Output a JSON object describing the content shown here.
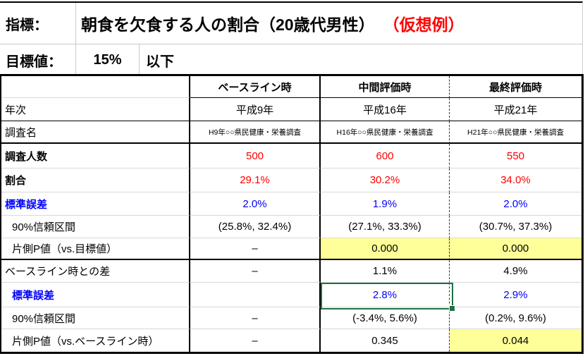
{
  "colors": {
    "value_red": "#FF0000",
    "se_blue": "#0000FF",
    "highlight_yellow": "#FFFF99",
    "selection_green": "#1E7145"
  },
  "header": {
    "indicator_label": "指標：",
    "indicator_title": "朝食を欠食する人の割合（20歳代男性）",
    "indicator_note": "（仮想例）",
    "target_label": "目標値：",
    "target_value": "15%",
    "target_suffix": "以下"
  },
  "table": {
    "column_headers": [
      "ベースライン時",
      "中間評価時",
      "最終評価時"
    ],
    "rows": [
      {
        "label": "年次",
        "values": [
          "平成9年",
          "平成16年",
          "平成21年"
        ]
      },
      {
        "label": "調査名",
        "values": [
          "H9年○○県民健康・栄養調査",
          "H16年○○県民健康・栄養調査",
          "H21年○○県民健康・栄養調査"
        ]
      },
      {
        "label": "調査人数",
        "values": [
          "500",
          "600",
          "550"
        ]
      },
      {
        "label": "割合",
        "values": [
          "29.1%",
          "30.2%",
          "34.0%"
        ]
      },
      {
        "label": "標準誤差",
        "values": [
          "2.0%",
          "1.9%",
          "2.0%"
        ]
      },
      {
        "label": "90%信頼区間",
        "values": [
          "(25.8%, 32.4%)",
          "(27.1%, 33.3%)",
          "(30.7%, 37.3%)"
        ]
      },
      {
        "label": "片側P値（vs.目標値）",
        "values": [
          "–",
          "0.000",
          "0.000"
        ]
      },
      {
        "label": "ベースライン時との差",
        "values": [
          "–",
          "1.1%",
          "4.9%"
        ]
      },
      {
        "label": "標準誤差",
        "values": [
          "",
          "2.8%",
          "2.9%"
        ]
      },
      {
        "label": "90%信頼区間",
        "values": [
          "–",
          "(-3.4%, 5.6%)",
          "(0.2%, 9.6%)"
        ]
      },
      {
        "label": "片側P値（vs.ベースライン時）",
        "values": [
          "–",
          "0.345",
          "0.044"
        ]
      }
    ],
    "selection": {
      "row_label": "標準誤差",
      "column": "中間評価時",
      "value": "2.8%"
    }
  }
}
